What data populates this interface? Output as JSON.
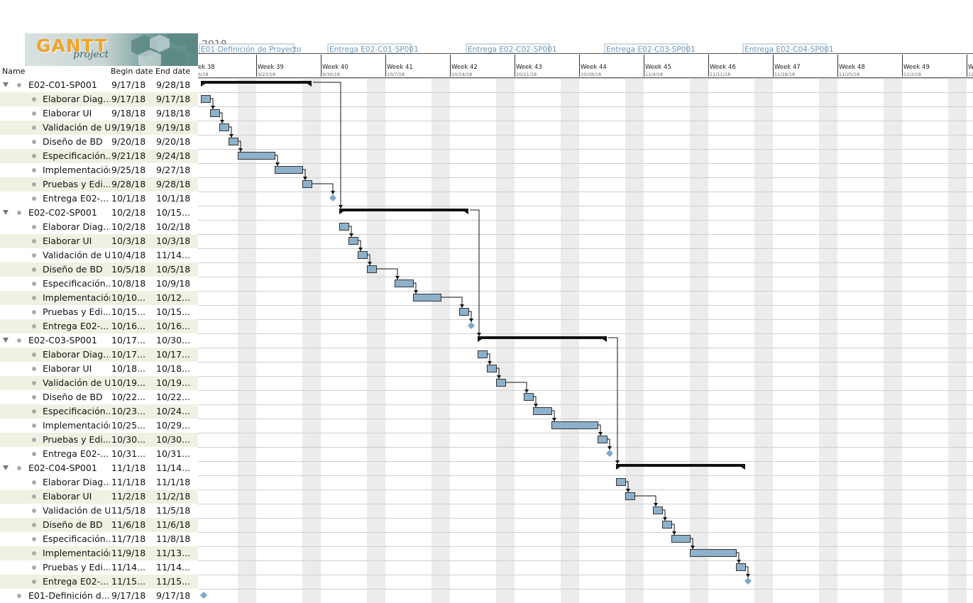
{
  "logo": {
    "main": "GANTT",
    "sub": "project"
  },
  "table": {
    "headers": {
      "name": "Name",
      "begin": "Begin date",
      "end": "End date"
    },
    "rows": [
      {
        "name": "E02-C01-SP001",
        "begin": "9/17/18",
        "end": "9/28/18",
        "type": "group"
      },
      {
        "name": "Elaborar Diag...",
        "begin": "9/17/18",
        "end": "9/17/18",
        "type": "task"
      },
      {
        "name": "Elaborar UI",
        "begin": "9/18/18",
        "end": "9/18/18",
        "type": "task"
      },
      {
        "name": "Validación de UI",
        "begin": "9/19/18",
        "end": "9/19/18",
        "type": "task"
      },
      {
        "name": "Diseño de BD",
        "begin": "9/20/18",
        "end": "9/20/18",
        "type": "task"
      },
      {
        "name": "Especificación...",
        "begin": "9/21/18",
        "end": "9/24/18",
        "type": "task"
      },
      {
        "name": "Implementación",
        "begin": "9/25/18",
        "end": "9/27/18",
        "type": "task"
      },
      {
        "name": "Pruebas y Edi...",
        "begin": "9/28/18",
        "end": "9/28/18",
        "type": "task"
      },
      {
        "name": "Entrega E02-...",
        "begin": "10/1/18",
        "end": "10/1/18",
        "type": "milestone"
      },
      {
        "name": "E02-C02-SP001",
        "begin": "10/2/18",
        "end": "10/15...",
        "type": "group"
      },
      {
        "name": "Elaborar Diag...",
        "begin": "10/2/18",
        "end": "10/2/18",
        "type": "task"
      },
      {
        "name": "Elaborar UI",
        "begin": "10/3/18",
        "end": "10/3/18",
        "type": "task"
      },
      {
        "name": "Validación de UI",
        "begin": "10/4/18",
        "end": "11/14...",
        "type": "task"
      },
      {
        "name": "Diseño de BD",
        "begin": "10/5/18",
        "end": "10/5/18",
        "type": "task"
      },
      {
        "name": "Especificación...",
        "begin": "10/8/18",
        "end": "10/9/18",
        "type": "task"
      },
      {
        "name": "Implementación",
        "begin": "10/10...",
        "end": "10/12...",
        "type": "task"
      },
      {
        "name": "Pruebas y Edi...",
        "begin": "10/15...",
        "end": "10/15...",
        "type": "task"
      },
      {
        "name": "Entrega E02-...",
        "begin": "10/16...",
        "end": "10/16...",
        "type": "milestone"
      },
      {
        "name": "E02-C03-SP001",
        "begin": "10/17...",
        "end": "10/30...",
        "type": "group"
      },
      {
        "name": "Elaborar Diag...",
        "begin": "10/17...",
        "end": "10/17...",
        "type": "task"
      },
      {
        "name": "Elaborar UI",
        "begin": "10/18...",
        "end": "10/18...",
        "type": "task"
      },
      {
        "name": "Validación de UI",
        "begin": "10/19...",
        "end": "10/19...",
        "type": "task"
      },
      {
        "name": "Diseño de BD",
        "begin": "10/22...",
        "end": "10/22...",
        "type": "task"
      },
      {
        "name": "Especificación...",
        "begin": "10/23...",
        "end": "10/24...",
        "type": "task"
      },
      {
        "name": "Implementación",
        "begin": "10/25...",
        "end": "10/29...",
        "type": "task"
      },
      {
        "name": "Pruebas y Edi...",
        "begin": "10/30...",
        "end": "10/30...",
        "type": "task"
      },
      {
        "name": "Entrega E02-...",
        "begin": "10/31...",
        "end": "10/31...",
        "type": "milestone"
      },
      {
        "name": "E02-C04-SP001",
        "begin": "11/1/18",
        "end": "11/14...",
        "type": "group"
      },
      {
        "name": "Elaborar Diag...",
        "begin": "11/1/18",
        "end": "11/1/18",
        "type": "task"
      },
      {
        "name": "Elaborar UI",
        "begin": "11/2/18",
        "end": "11/2/18",
        "type": "task"
      },
      {
        "name": "Validación de UI",
        "begin": "11/5/18",
        "end": "11/5/18",
        "type": "task"
      },
      {
        "name": "Diseño de BD",
        "begin": "11/6/18",
        "end": "11/6/18",
        "type": "task"
      },
      {
        "name": "Especificación...",
        "begin": "11/7/18",
        "end": "11/8/18",
        "type": "task"
      },
      {
        "name": "Implementación",
        "begin": "11/9/18",
        "end": "11/13...",
        "type": "task"
      },
      {
        "name": "Pruebas y Edi...",
        "begin": "11/14...",
        "end": "11/14...",
        "type": "task"
      },
      {
        "name": "Entrega E02-...",
        "begin": "11/15...",
        "end": "11/15...",
        "type": "milestone"
      },
      {
        "name": "E01-Definición d...",
        "begin": "9/17/18",
        "end": "9/17/18",
        "type": "milestone_top"
      }
    ]
  },
  "timeline": {
    "year": "2018",
    "weeks": [
      {
        "label": "ek 38",
        "date": "6/18"
      },
      {
        "label": "Week 39",
        "date": "9/23/18"
      },
      {
        "label": "Week 40",
        "date": "9/30/18"
      },
      {
        "label": "Week 41",
        "date": "10/7/18"
      },
      {
        "label": "Week 42",
        "date": "10/14/18"
      },
      {
        "label": "Week 43",
        "date": "10/21/18"
      },
      {
        "label": "Week 44",
        "date": "10/28/18"
      },
      {
        "label": "Week 45",
        "date": "11/4/18"
      },
      {
        "label": "Week 46",
        "date": "11/11/18"
      },
      {
        "label": "Week 47",
        "date": "11/18/18"
      },
      {
        "label": "Week 48",
        "date": "11/25/18"
      },
      {
        "label": "Week 49",
        "date": "12/2/18"
      },
      {
        "label": "We",
        "date": "12/"
      }
    ],
    "milestone_tags": [
      "E01-Definición de Proyecto",
      "Entrega E02-C01-SP001",
      "Entrega E02-C02-SP001",
      "Entrega E02-C03-SP001",
      "Entrega E02-C04-SP001"
    ]
  },
  "colors": {
    "task_fill": "#8eb1cb",
    "task_stroke": "#333333",
    "milestone": "#7ea6c7",
    "row_shade": "#f1f1e3",
    "weekend": "#ececec",
    "logo_orange": "#f0a32a"
  }
}
